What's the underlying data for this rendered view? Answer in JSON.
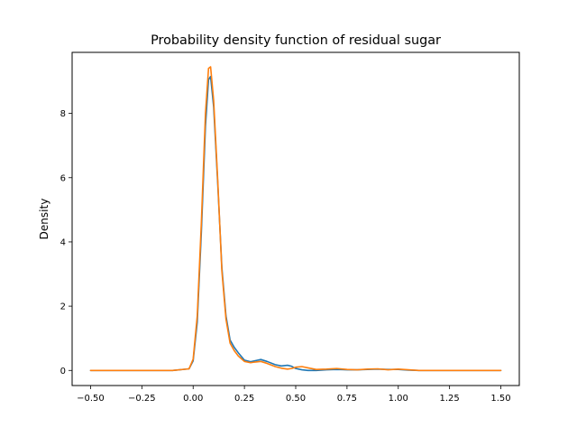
{
  "chart_data": {
    "type": "line",
    "title": "Probability density function of residual sugar",
    "xlabel": "",
    "ylabel": "Density",
    "xlim": [
      -0.59,
      1.59
    ],
    "ylim": [
      -0.47,
      9.9
    ],
    "xticks": [
      -0.5,
      -0.25,
      0.0,
      0.25,
      0.5,
      0.75,
      1.0,
      1.25,
      1.5
    ],
    "xtick_labels": [
      "−0.50",
      "−0.25",
      "0.00",
      "0.25",
      "0.50",
      "0.75",
      "1.00",
      "1.25",
      "1.50"
    ],
    "yticks": [
      0,
      2,
      4,
      6,
      8
    ],
    "ytick_labels": [
      "0",
      "2",
      "4",
      "6",
      "8"
    ],
    "grid": false,
    "legend": null,
    "series": [
      {
        "color": "#1f77b4",
        "x": [
          -0.5,
          -0.3,
          -0.1,
          -0.02,
          0.0,
          0.02,
          0.04,
          0.06,
          0.075,
          0.085,
          0.1,
          0.12,
          0.14,
          0.16,
          0.18,
          0.2,
          0.22,
          0.25,
          0.28,
          0.3,
          0.33,
          0.36,
          0.4,
          0.43,
          0.46,
          0.48,
          0.5,
          0.53,
          0.56,
          0.6,
          0.65,
          0.7,
          0.75,
          0.8,
          0.85,
          0.9,
          0.95,
          1.0,
          1.05,
          1.1,
          1.2,
          1.3,
          1.4,
          1.5
        ],
        "y": [
          0.0,
          0.0,
          0.0,
          0.05,
          0.3,
          1.5,
          4.3,
          7.6,
          9.05,
          9.15,
          8.2,
          5.8,
          3.2,
          1.7,
          0.95,
          0.72,
          0.55,
          0.32,
          0.27,
          0.3,
          0.34,
          0.28,
          0.18,
          0.14,
          0.16,
          0.13,
          0.06,
          0.02,
          0.0,
          0.0,
          0.02,
          0.03,
          0.02,
          0.02,
          0.03,
          0.04,
          0.03,
          0.03,
          0.01,
          0.0,
          0.0,
          0.0,
          0.0,
          0.0
        ]
      },
      {
        "color": "#ff7f0e",
        "x": [
          -0.5,
          -0.3,
          -0.1,
          -0.02,
          0.0,
          0.02,
          0.04,
          0.06,
          0.075,
          0.085,
          0.1,
          0.12,
          0.14,
          0.16,
          0.18,
          0.2,
          0.22,
          0.25,
          0.28,
          0.3,
          0.33,
          0.36,
          0.4,
          0.43,
          0.46,
          0.48,
          0.5,
          0.53,
          0.56,
          0.6,
          0.65,
          0.7,
          0.75,
          0.8,
          0.85,
          0.9,
          0.95,
          1.0,
          1.05,
          1.1,
          1.2,
          1.3,
          1.4,
          1.5
        ],
        "y": [
          0.0,
          0.0,
          0.0,
          0.05,
          0.35,
          1.7,
          4.6,
          8.0,
          9.4,
          9.45,
          8.4,
          5.9,
          3.1,
          1.6,
          0.85,
          0.62,
          0.45,
          0.28,
          0.24,
          0.26,
          0.28,
          0.22,
          0.12,
          0.07,
          0.04,
          0.06,
          0.1,
          0.12,
          0.08,
          0.03,
          0.04,
          0.06,
          0.03,
          0.02,
          0.04,
          0.05,
          0.02,
          0.04,
          0.02,
          0.0,
          0.0,
          0.0,
          0.0,
          0.0
        ]
      }
    ]
  }
}
